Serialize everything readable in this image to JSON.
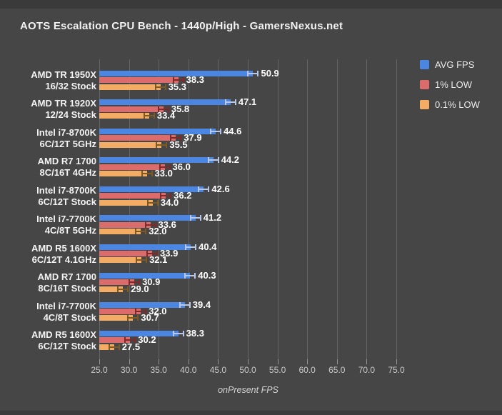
{
  "header": {
    "title": "AOTS Escalation CPU Bench - 1440p/High - GamersNexus.net"
  },
  "chart_data": {
    "type": "bar",
    "orientation": "horizontal",
    "title": "AOTS Escalation CPU Bench - 1440p/High - GamersNexus.net",
    "xlabel": "onPresent FPS",
    "xlim": [
      25,
      77.5
    ],
    "xtick_labels": [
      "25.0",
      "30.0",
      "35.0",
      "40.0",
      "45.0",
      "50.0",
      "55.0",
      "60.0",
      "65.0",
      "70.0",
      "75.0"
    ],
    "grid": true,
    "error_bars": true,
    "legend_position": "top-right",
    "value_label_decimals": 1,
    "categories": [
      {
        "line1": "AMD TR 1950X",
        "line2": "16/32 Stock"
      },
      {
        "line1": "AMD TR 1920X",
        "line2": "12/24 Stock"
      },
      {
        "line1": "Intel i7-8700K",
        "line2": "6C/12T 5GHz"
      },
      {
        "line1": "AMD R7 1700",
        "line2": "8C/16T 4GHz"
      },
      {
        "line1": "Intel i7-8700K",
        "line2": "6C/12T Stock"
      },
      {
        "line1": "Intel i7-7700K",
        "line2": "4C/8T 5GHz"
      },
      {
        "line1": "AMD R5 1600X",
        "line2": "6C/12T 4.1GHz"
      },
      {
        "line1": "AMD R7 1700",
        "line2": "8C/16T Stock"
      },
      {
        "line1": "Intel i7-7700K",
        "line2": "4C/8T Stock"
      },
      {
        "line1": "AMD R5 1600X",
        "line2": "6C/12T Stock"
      }
    ],
    "series": [
      {
        "name": "AVG FPS",
        "color": "#4b86e3",
        "error_color": "#b9c7e8",
        "values": [
          50.9,
          47.1,
          44.6,
          44.2,
          42.6,
          41.2,
          40.4,
          40.3,
          39.4,
          38.3
        ]
      },
      {
        "name": "1% LOW",
        "color": "#dc6b6b",
        "error_color": "#7e2a2a",
        "values": [
          38.3,
          35.8,
          37.9,
          36.0,
          36.2,
          33.6,
          33.9,
          30.9,
          32.0,
          30.2
        ]
      },
      {
        "name": "0.1% LOW",
        "color": "#f4ab63",
        "error_color": "#7d5a22",
        "values": [
          35.3,
          33.4,
          35.5,
          33.0,
          34.0,
          32.0,
          32.1,
          29.0,
          30.7,
          27.5
        ]
      }
    ]
  }
}
